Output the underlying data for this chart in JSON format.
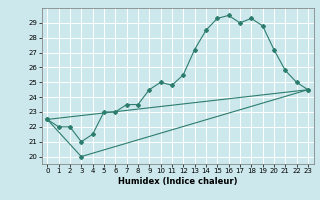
{
  "title": "",
  "xlabel": "Humidex (Indice chaleur)",
  "ylabel": "",
  "bg_color": "#cce8ec",
  "grid_color": "#ffffff",
  "line_color": "#2d7d6e",
  "xlim": [
    -0.5,
    23.5
  ],
  "ylim": [
    19.5,
    30.0
  ],
  "xticks": [
    0,
    1,
    2,
    3,
    4,
    5,
    6,
    7,
    8,
    9,
    10,
    11,
    12,
    13,
    14,
    15,
    16,
    17,
    18,
    19,
    20,
    21,
    22,
    23
  ],
  "yticks": [
    20,
    21,
    22,
    23,
    24,
    25,
    26,
    27,
    28,
    29
  ],
  "series1_x": [
    0,
    1,
    2,
    3,
    4,
    5,
    6,
    7,
    8,
    9,
    10,
    11,
    12,
    13,
    14,
    15,
    16,
    17,
    18,
    19,
    20,
    21,
    22,
    23
  ],
  "series1_y": [
    22.5,
    22.0,
    22.0,
    21.0,
    21.5,
    23.0,
    23.0,
    23.5,
    23.5,
    24.5,
    25.0,
    24.8,
    25.5,
    27.2,
    28.5,
    29.3,
    29.5,
    29.0,
    29.3,
    28.8,
    27.2,
    25.8,
    25.0,
    24.5
  ],
  "series2_x": [
    0,
    3,
    23
  ],
  "series2_y": [
    22.5,
    20.0,
    24.5
  ],
  "series3_x": [
    0,
    23
  ],
  "series3_y": [
    22.5,
    24.5
  ],
  "tick_fontsize": 5,
  "xlabel_fontsize": 6
}
